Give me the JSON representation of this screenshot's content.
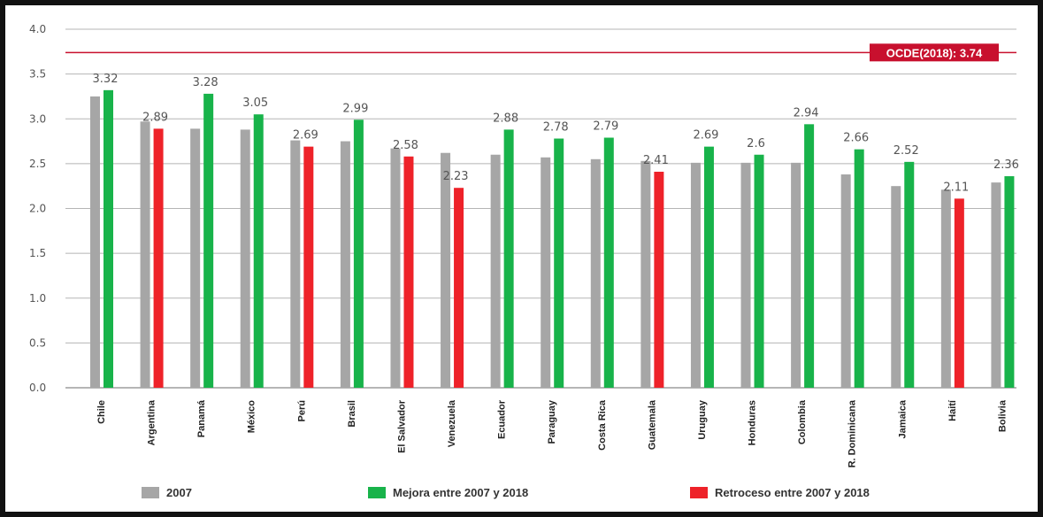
{
  "chart_data": {
    "type": "bar",
    "categories": [
      "Chile",
      "Argentina",
      "Panamá",
      "México",
      "Perú",
      "Brasil",
      "El Salvador",
      "Venezuela",
      "Ecuador",
      "Paraguay",
      "Costa Rica",
      "Guatemala",
      "Uruguay",
      "Honduras",
      "Colombia",
      "R. Dominicana",
      "Jamaica",
      "Haití",
      "Bolivia"
    ],
    "series": [
      {
        "name": "2007",
        "values": [
          3.25,
          2.97,
          2.89,
          2.88,
          2.76,
          2.75,
          2.67,
          2.62,
          2.6,
          2.57,
          2.55,
          2.53,
          2.51,
          2.51,
          2.51,
          2.38,
          2.25,
          2.21,
          2.29
        ]
      },
      {
        "name": "2018",
        "values": [
          3.32,
          2.89,
          3.28,
          3.05,
          2.69,
          2.99,
          2.58,
          2.23,
          2.88,
          2.78,
          2.79,
          2.41,
          2.69,
          2.6,
          2.94,
          2.66,
          2.52,
          2.11,
          2.36
        ]
      }
    ],
    "labels_2018": [
      "3.32",
      "2.89",
      "3.28",
      "3.05",
      "2.69",
      "2.99",
      "2.58",
      "2.23",
      "2.88",
      "2.78",
      "2.79",
      "2.41",
      "2.69",
      "2.6",
      "2.94",
      "2.66",
      "2.52",
      "2.11",
      "2.36"
    ],
    "ylim": [
      0,
      4.0
    ],
    "yticks": [
      "0.0",
      "0.5",
      "1.0",
      "1.5",
      "2.0",
      "2.5",
      "3.0",
      "3.5",
      "4.0"
    ],
    "reference_line": {
      "value": 3.74,
      "label": "OCDE(2018): 3.74"
    },
    "legend": [
      {
        "label": "2007",
        "color": "#a6a6a6"
      },
      {
        "label": "Mejora entre 2007 y 2018",
        "color": "#18b34a"
      },
      {
        "label": "Retroceso entre 2007 y 2018",
        "color": "#ee2229"
      }
    ],
    "colors": {
      "gray": "#a6a6a6",
      "improve": "#18b34a",
      "decline": "#ee2229",
      "reference": "#c8102e",
      "grid": "#b5b5b5"
    },
    "grid": true,
    "legend_position": "bottom"
  }
}
